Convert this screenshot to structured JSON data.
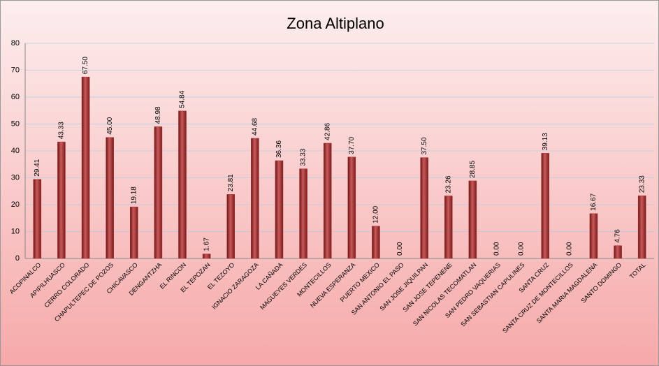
{
  "chart_data": {
    "type": "bar",
    "title": "Zona Altiplano",
    "categories": [
      "ACOPINALCO",
      "APIPILHUASCO",
      "CERRO COLORADO",
      "CHAPULTEPEC DE POZOS",
      "CHICAVASCO",
      "DENGANTZHA",
      "EL RINCON",
      "EL TEPOZAN",
      "EL TEZOYO",
      "IGNACIO ZARAGOZA",
      "LA CAÑADA",
      "MAGUEYES VERDES",
      "MONTECILLOS",
      "NUEVA ESPERANZA",
      "PUERTO MEXICO",
      "SAN ANTONIO EL PASO",
      "SAN JOSE JIQUILPAN",
      "SAN JOSE TEPENENE",
      "SAN NICOLAS TECOMATLAN",
      "SAN PEDRO VAQUERIAS",
      "SAN SEBASTIAN CAPULINES",
      "SANTA CRUZ",
      "SANTA CRUZ DE MONTECILLOS",
      "SANTA MARIA MAGDALENA",
      "SANTO DOMINGO",
      "TOTAL"
    ],
    "values": [
      29.41,
      43.33,
      67.5,
      45,
      19.18,
      48.98,
      54.84,
      1.67,
      23.81,
      44.68,
      36.36,
      33.33,
      42.86,
      37.7,
      12,
      0,
      37.5,
      23.26,
      28.85,
      0,
      0,
      39.13,
      0,
      16.67,
      4.76,
      23.33
    ],
    "value_labels": [
      "29.41",
      "43.33",
      "67.50",
      "45.00",
      "19.18",
      "48.98",
      "54.84",
      "1.67",
      "23.81",
      "44.68",
      "36.36",
      "33.33",
      "42.86",
      "37.70",
      "12.00",
      "0.00",
      "37.50",
      "23.26",
      "28.85",
      "0.00",
      "0.00",
      "39.13",
      "0.00",
      "16.67",
      "4.76",
      "23.33"
    ],
    "color": "#a83232",
    "ylim": [
      0,
      80
    ],
    "yticks": [
      0,
      10,
      20,
      30,
      40,
      50,
      60,
      70,
      80
    ],
    "grid": true
  }
}
